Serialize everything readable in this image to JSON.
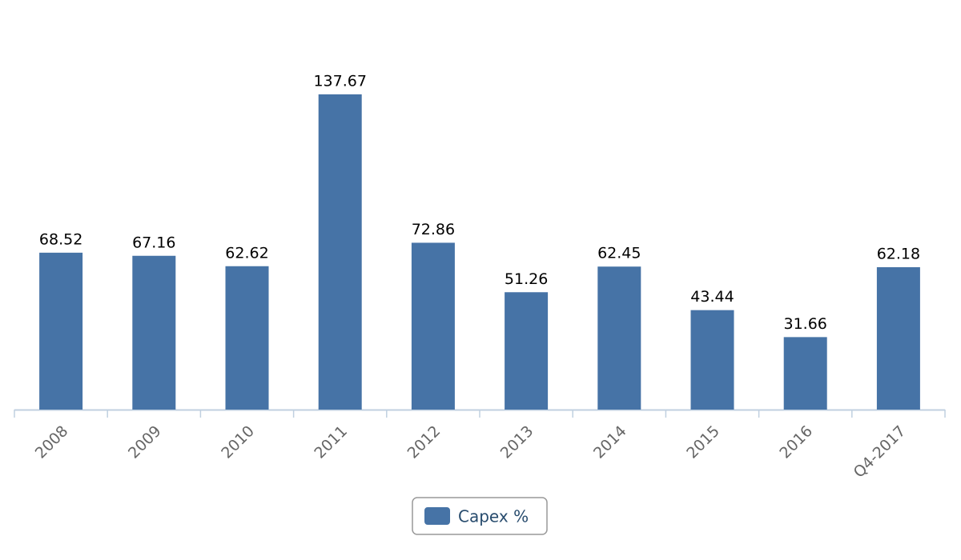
{
  "chart_data": {
    "type": "bar",
    "categories": [
      "2008",
      "2009",
      "2010",
      "2011",
      "2012",
      "2013",
      "2014",
      "2015",
      "2016",
      "Q4-2017"
    ],
    "series": [
      {
        "name": "Capex %",
        "color": "#4673a6",
        "values": [
          68.52,
          67.16,
          62.62,
          137.67,
          72.86,
          51.26,
          62.45,
          43.44,
          31.66,
          62.18
        ]
      }
    ],
    "ylim": [
      0,
      160
    ]
  }
}
